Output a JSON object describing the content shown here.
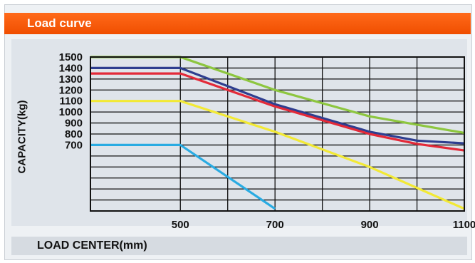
{
  "header": {
    "title": "Load curve"
  },
  "chart_data": {
    "type": "line",
    "xlabel": "LOAD CENTER(mm)",
    "ylabel": "CAPACITY(kg)",
    "x_ticks": [
      500,
      700,
      900,
      1100
    ],
    "y_ticks": [
      1500,
      1400,
      1300,
      1200,
      1100,
      1000,
      900,
      800,
      700
    ],
    "xlim": [
      310,
      1100
    ],
    "ylim": [
      100,
      1500
    ],
    "grid": true,
    "series": [
      {
        "color": "#8dc63f",
        "x": [
          310,
          500,
          700,
          900,
          1100
        ],
        "y": [
          1500,
          1500,
          1200,
          960,
          810
        ]
      },
      {
        "color": "#2e3e8f",
        "x": [
          310,
          500,
          700,
          900,
          1000,
          1100
        ],
        "y": [
          1400,
          1400,
          1070,
          820,
          740,
          715
        ]
      },
      {
        "color": "#e32a39",
        "x": [
          310,
          500,
          700,
          900,
          1000,
          1100
        ],
        "y": [
          1350,
          1350,
          1050,
          800,
          710,
          650
        ]
      },
      {
        "color": "#f2e935",
        "x": [
          310,
          500,
          700,
          900,
          1100
        ],
        "y": [
          1100,
          1100,
          820,
          500,
          120
        ]
      },
      {
        "color": "#29abe2",
        "x": [
          310,
          500,
          700
        ],
        "y": [
          700,
          700,
          120
        ]
      }
    ]
  }
}
